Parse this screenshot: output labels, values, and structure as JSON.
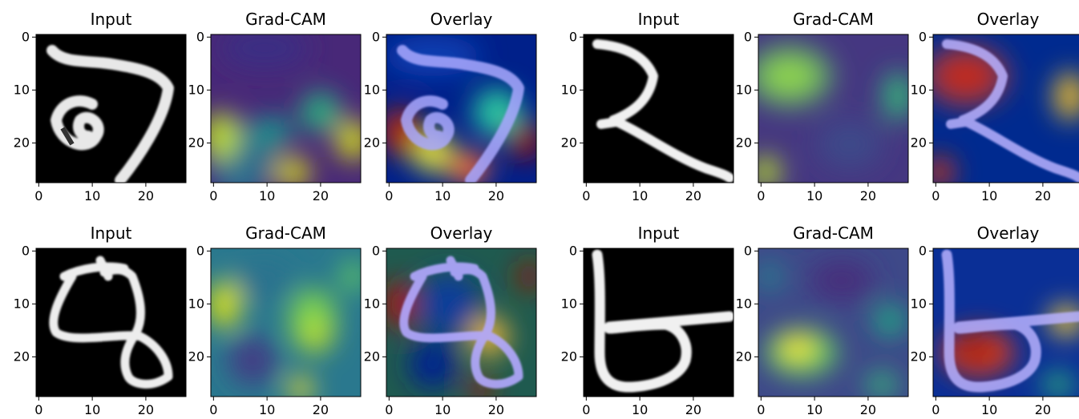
{
  "figure": {
    "background": "#ffffff",
    "axis_color": "#000000",
    "tick_labels": [
      "0",
      "10",
      "20"
    ],
    "rows": [
      {
        "panels": [
          {
            "title": "Input",
            "kind": "input"
          },
          {
            "title": "Grad-CAM",
            "kind": "gradcam"
          },
          {
            "title": "Overlay",
            "kind": "overlay"
          },
          {
            "title": "Input",
            "kind": "input"
          },
          {
            "title": "Grad-CAM",
            "kind": "gradcam"
          },
          {
            "title": "Overlay",
            "kind": "overlay"
          }
        ]
      },
      {
        "panels": [
          {
            "title": "Input",
            "kind": "input"
          },
          {
            "title": "Grad-CAM",
            "kind": "gradcam"
          },
          {
            "title": "Overlay",
            "kind": "overlay"
          },
          {
            "title": "Input",
            "kind": "input"
          },
          {
            "title": "Grad-CAM",
            "kind": "gradcam"
          },
          {
            "title": "Overlay",
            "kind": "overlay"
          }
        ]
      }
    ]
  }
}
